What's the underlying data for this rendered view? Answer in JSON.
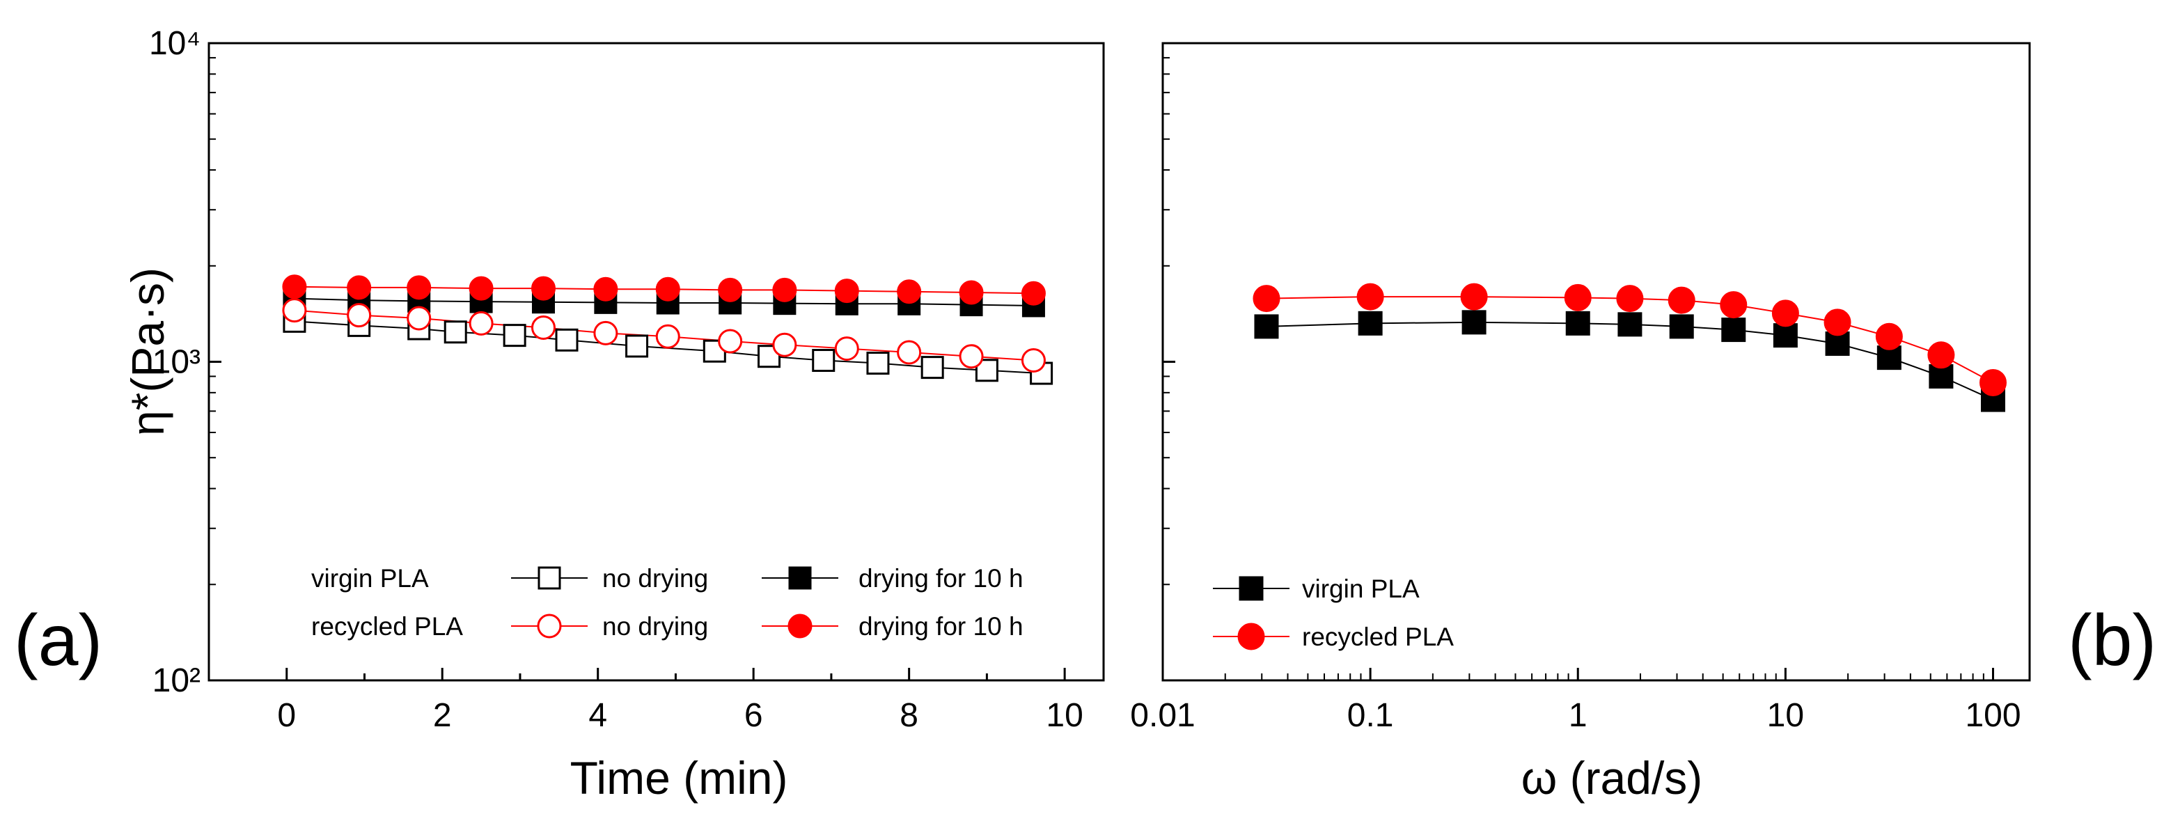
{
  "chart_data": [
    {
      "panel": "(a)",
      "type": "scatter",
      "xlabel": "Time (min)",
      "ylabel": "η*(Pa·s)",
      "xlim": [
        -1,
        10.5
      ],
      "ylim": [
        100,
        10000
      ],
      "yscale": "log",
      "xticks": [
        "0",
        "2",
        "4",
        "6",
        "8",
        "10"
      ],
      "yticks": [
        "10²",
        "10³",
        "10⁴"
      ],
      "grid": false,
      "legend_position": "bottom-left",
      "legend_rows": [
        {
          "label": "virgin PLA",
          "entries": [
            "no drying",
            "drying for 10 h"
          ]
        },
        {
          "label": "recycled PLA",
          "entries": [
            "no drying",
            "drying for 10 h"
          ]
        }
      ],
      "series": [
        {
          "group": "virgin PLA",
          "name": "no drying",
          "marker": "square",
          "filled": false,
          "color": "#000000",
          "x": [
            0.1,
            0.93,
            1.7,
            2.17,
            2.93,
            3.6,
            4.5,
            5.5,
            6.2,
            6.9,
            7.6,
            8.3,
            9.0,
            9.7
          ],
          "y": [
            1340,
            1300,
            1270,
            1240,
            1210,
            1170,
            1120,
            1080,
            1040,
            1010,
            990,
            960,
            940,
            920
          ]
        },
        {
          "group": "virgin PLA",
          "name": "drying for 10 h",
          "marker": "square",
          "filled": true,
          "color": "#000000",
          "x": [
            0.1,
            0.93,
            1.7,
            2.5,
            3.3,
            4.1,
            4.9,
            5.7,
            6.4,
            7.2,
            8.0,
            8.8,
            9.6
          ],
          "y": [
            1580,
            1560,
            1550,
            1545,
            1540,
            1535,
            1530,
            1530,
            1525,
            1520,
            1520,
            1510,
            1500
          ]
        },
        {
          "group": "recycled PLA",
          "name": "no drying",
          "marker": "circle",
          "filled": false,
          "color": "#ff0000",
          "x": [
            0.1,
            0.93,
            1.7,
            2.5,
            3.3,
            4.1,
            4.9,
            5.7,
            6.4,
            7.2,
            8.0,
            8.8,
            9.6
          ],
          "y": [
            1450,
            1400,
            1370,
            1320,
            1280,
            1230,
            1200,
            1160,
            1130,
            1100,
            1070,
            1040,
            1010
          ]
        },
        {
          "group": "recycled PLA",
          "name": "drying for 10 h",
          "marker": "circle",
          "filled": true,
          "color": "#ff0000",
          "x": [
            0.1,
            0.93,
            1.7,
            2.5,
            3.3,
            4.1,
            4.9,
            5.7,
            6.4,
            7.2,
            8.0,
            8.8,
            9.6
          ],
          "y": [
            1720,
            1710,
            1710,
            1700,
            1700,
            1690,
            1690,
            1680,
            1680,
            1670,
            1660,
            1650,
            1640
          ]
        }
      ]
    },
    {
      "panel": "(b)",
      "type": "scatter",
      "xlabel": "ω (rad/s)",
      "ylabel": "",
      "xscale": "log",
      "yscale": "log",
      "xlim": [
        0.01,
        150
      ],
      "ylim": [
        100,
        10000
      ],
      "xticks": [
        "0.01",
        "0.1",
        "1",
        "10",
        "100"
      ],
      "grid": false,
      "legend_position": "bottom-left",
      "series": [
        {
          "name": "virgin PLA",
          "marker": "square",
          "filled": true,
          "color": "#000000",
          "x": [
            0.0316,
            0.1,
            0.316,
            1,
            1.78,
            3.16,
            5.62,
            10,
            17.8,
            31.6,
            56.2,
            100
          ],
          "y": [
            1290,
            1320,
            1330,
            1320,
            1310,
            1290,
            1260,
            1210,
            1140,
            1030,
            900,
            760
          ]
        },
        {
          "name": "recycled PLA",
          "marker": "circle",
          "filled": true,
          "color": "#ff0000",
          "x": [
            0.0316,
            0.1,
            0.316,
            1,
            1.78,
            3.16,
            5.62,
            10,
            17.8,
            31.6,
            56.2,
            100
          ],
          "y": [
            1580,
            1600,
            1600,
            1590,
            1580,
            1560,
            1510,
            1420,
            1330,
            1200,
            1050,
            860
          ]
        }
      ]
    }
  ]
}
